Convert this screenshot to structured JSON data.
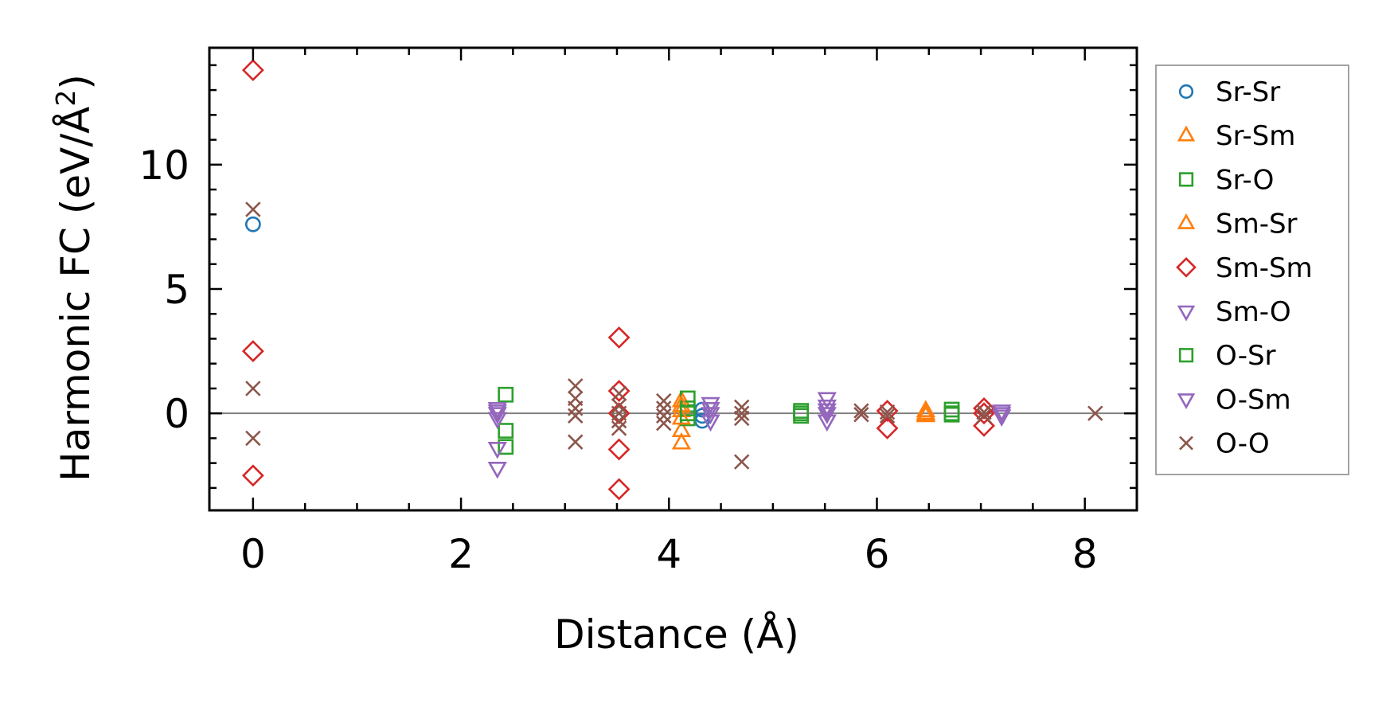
{
  "chart_data": {
    "type": "scatter",
    "title": "",
    "xlabel": "Distance (Å)",
    "ylabel_main": "Harmonic FC (eV/Å",
    "ylabel_sup": "2",
    "ylabel_close": ")",
    "xlim": [
      -0.42,
      8.5
    ],
    "ylim": [
      -3.9,
      14.7
    ],
    "xticks": [
      0,
      2,
      4,
      6,
      8
    ],
    "xtick_labels": [
      "0",
      "2",
      "4",
      "6",
      "8"
    ],
    "yticks": [
      0,
      5,
      10
    ],
    "ytick_labels": [
      "0",
      "5",
      "10"
    ],
    "grid": false,
    "zero_line": true,
    "legend_position": "outside-right",
    "series": [
      {
        "name": "Sr-Sr",
        "marker": "circle",
        "filled": false,
        "color": "#1f77b4",
        "points": [
          [
            0,
            7.6
          ],
          [
            4.32,
            -0.3
          ],
          [
            4.32,
            0.15
          ],
          [
            4.32,
            -0.1
          ]
        ]
      },
      {
        "name": "Sr-Sm",
        "marker": "triangle-up",
        "filled": false,
        "color": "#ff7f0e",
        "points": [
          [
            4.12,
            -1.2
          ],
          [
            4.12,
            -0.7
          ],
          [
            4.12,
            0.5
          ],
          [
            4.12,
            0.1
          ],
          [
            6.47,
            -0.1
          ],
          [
            6.47,
            0.1
          ],
          [
            6.47,
            -0.05
          ]
        ]
      },
      {
        "name": "Sr-O",
        "marker": "square",
        "filled": false,
        "color": "#2ca02c",
        "points": [
          [
            2.43,
            0.75
          ],
          [
            2.43,
            -0.7
          ],
          [
            2.43,
            -1.35
          ],
          [
            4.18,
            0.6
          ],
          [
            4.18,
            0.2
          ],
          [
            4.18,
            -0.2
          ],
          [
            5.27,
            0.1
          ],
          [
            5.27,
            -0.1
          ],
          [
            6.72,
            0.15
          ],
          [
            6.72,
            -0.05
          ]
        ]
      },
      {
        "name": "Sm-Sr",
        "marker": "triangle-up",
        "filled": false,
        "color": "#ff7f0e",
        "points": [
          [
            4.12,
            0.3
          ],
          [
            4.12,
            -0.2
          ],
          [
            6.47,
            0.0
          ]
        ]
      },
      {
        "name": "Sm-Sm",
        "marker": "diamond",
        "filled": false,
        "color": "#d62728",
        "points": [
          [
            0,
            13.8
          ],
          [
            0,
            2.5
          ],
          [
            0,
            -2.5
          ],
          [
            3.52,
            3.05
          ],
          [
            3.52,
            0.9
          ],
          [
            3.52,
            0.0
          ],
          [
            3.52,
            -1.45
          ],
          [
            3.52,
            -3.05
          ],
          [
            6.1,
            0.1
          ],
          [
            6.1,
            -0.6
          ],
          [
            7.03,
            0.2
          ],
          [
            7.03,
            -0.5
          ],
          [
            7.03,
            0.0
          ]
        ]
      },
      {
        "name": "Sm-O",
        "marker": "triangle-down",
        "filled": false,
        "color": "#9467bd",
        "points": [
          [
            2.35,
            0.2
          ],
          [
            2.35,
            0.0
          ],
          [
            2.35,
            -0.2
          ],
          [
            2.35,
            -1.4
          ],
          [
            2.35,
            -2.2
          ],
          [
            4.4,
            0.4
          ],
          [
            4.4,
            0.0
          ],
          [
            4.4,
            -0.3
          ],
          [
            5.52,
            0.6
          ],
          [
            5.52,
            0.3
          ],
          [
            5.52,
            0.0
          ],
          [
            5.52,
            -0.3
          ],
          [
            7.2,
            0.1
          ],
          [
            7.2,
            -0.1
          ]
        ]
      },
      {
        "name": "O-Sr",
        "marker": "square",
        "filled": false,
        "color": "#2ca02c",
        "points": [
          [
            4.18,
            0.0
          ],
          [
            5.27,
            0.0
          ],
          [
            6.72,
            0.0
          ]
        ]
      },
      {
        "name": "O-Sm",
        "marker": "triangle-down",
        "filled": false,
        "color": "#9467bd",
        "points": [
          [
            2.35,
            0.1
          ],
          [
            4.4,
            0.2
          ],
          [
            5.52,
            0.15
          ],
          [
            7.2,
            0.0
          ]
        ]
      },
      {
        "name": "O-O",
        "marker": "x",
        "filled": false,
        "color": "#8c564b",
        "points": [
          [
            0,
            8.2
          ],
          [
            0,
            1.0
          ],
          [
            0,
            -1.0
          ],
          [
            3.1,
            1.1
          ],
          [
            3.1,
            0.6
          ],
          [
            3.1,
            0.2
          ],
          [
            3.1,
            -0.1
          ],
          [
            3.1,
            -1.15
          ],
          [
            3.52,
            0.8
          ],
          [
            3.52,
            0.3
          ],
          [
            3.52,
            0.0
          ],
          [
            3.52,
            -0.3
          ],
          [
            3.52,
            -0.6
          ],
          [
            3.95,
            0.5
          ],
          [
            3.95,
            0.2
          ],
          [
            3.95,
            -0.1
          ],
          [
            3.95,
            -0.4
          ],
          [
            4.7,
            0.25
          ],
          [
            4.7,
            0.0
          ],
          [
            4.7,
            -0.2
          ],
          [
            4.7,
            -1.95
          ],
          [
            5.85,
            0.1
          ],
          [
            5.85,
            -0.05
          ],
          [
            6.1,
            0.05
          ],
          [
            6.1,
            -0.1
          ],
          [
            7.03,
            0.05
          ],
          [
            7.03,
            -0.1
          ],
          [
            8.1,
            0.0
          ]
        ]
      }
    ]
  }
}
